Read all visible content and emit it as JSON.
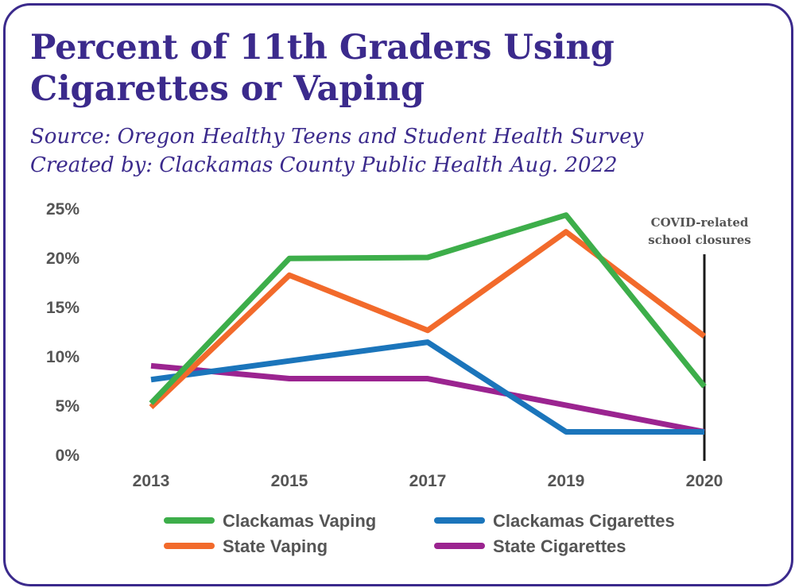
{
  "chart_data": {
    "type": "line",
    "title": [
      "Percent of 11th Graders Using",
      "Cigarettes or Vaping"
    ],
    "subtitle": [
      "Source: Oregon Healthy Teens and Student Health Survey",
      "Created by: Clackamas County Public Health Aug. 2022"
    ],
    "x": [
      "2013",
      "2015",
      "2017",
      "2019",
      "2020"
    ],
    "y_ticks": [
      "0%",
      "5%",
      "10%",
      "15%",
      "20%",
      "25%"
    ],
    "ylim": [
      0,
      25
    ],
    "grid": false,
    "legend_position": "bottom",
    "series": [
      {
        "name": "Clackamas Vaping",
        "color": "#3dae4a",
        "values": [
          5.2,
          19.9,
          20.0,
          24.3,
          6.9
        ]
      },
      {
        "name": "State Vaping",
        "color": "#f26a2b",
        "values": [
          4.8,
          18.2,
          12.6,
          22.6,
          12.0
        ]
      },
      {
        "name": "Clackamas Cigarettes",
        "color": "#1b75bb",
        "values": [
          7.6,
          null,
          11.4,
          2.3,
          2.3
        ]
      },
      {
        "name": "State Cigarettes",
        "color": "#9b2490",
        "values": [
          9.0,
          7.7,
          7.7,
          null,
          2.3
        ]
      }
    ],
    "annotation": {
      "x": "2020",
      "lines": [
        "COVID-related",
        "school closures"
      ]
    }
  }
}
